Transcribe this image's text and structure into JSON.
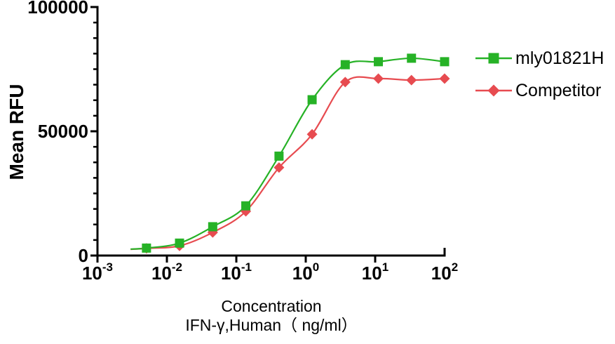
{
  "chart_data": {
    "type": "scatter-line",
    "title": "",
    "ylabel": "Mean RFU",
    "xlabel_line1": "Concentration",
    "xlabel_line2": "IFN-γ,Human（ ng/ml）",
    "x_scale": "log10",
    "x_tick_base": "10",
    "x_tick_exponents": [
      -3,
      -2,
      -1,
      0,
      1,
      2
    ],
    "xlim": [
      0.001,
      100
    ],
    "ylim": [
      0,
      100000
    ],
    "y_major_ticks": [
      0,
      50000,
      100000
    ],
    "y_major_tick_labels": [
      "0",
      "50000",
      "100000"
    ],
    "y_minor_divisions": 8,
    "grid": "off",
    "legend_position": "right",
    "axis_color": "#000000",
    "background": "#FFFFFF",
    "x_values": [
      0.00508,
      0.0152,
      0.0457,
      0.137,
      0.412,
      1.235,
      3.704,
      11.11,
      33.33,
      100
    ],
    "series": [
      {
        "name": "mly01821H",
        "marker": "square",
        "color": "#26B226",
        "curve_start": {
          "x": 0.003,
          "value": 2600
        },
        "values": [
          3000,
          5000,
          11600,
          20000,
          40000,
          62700,
          76800,
          78000,
          79400,
          78000
        ]
      },
      {
        "name": "Competitor",
        "marker": "diamond",
        "color": "#E74B50",
        "curve_start": {
          "x": 0.003,
          "value": 2500
        },
        "values": [
          2900,
          3900,
          9300,
          17800,
          35400,
          48800,
          69800,
          71200,
          70600,
          71200
        ]
      }
    ]
  }
}
